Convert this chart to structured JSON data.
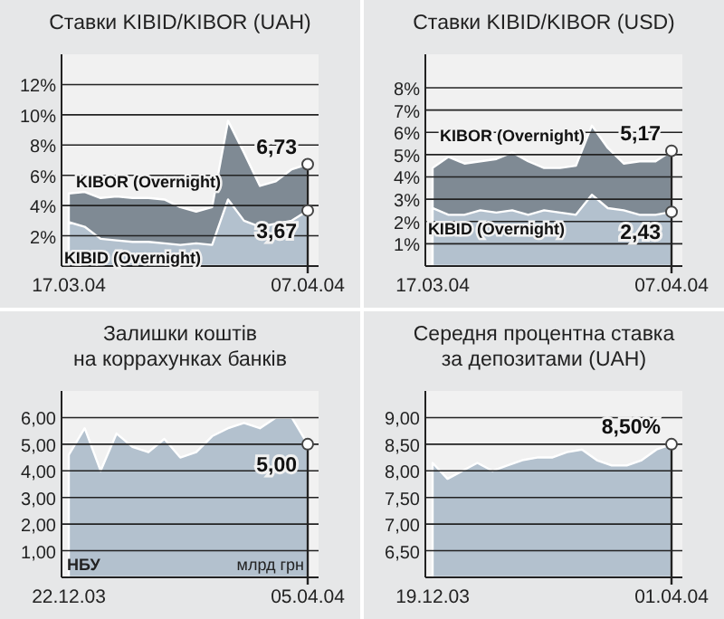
{
  "chart_data": [
    {
      "type": "area",
      "title": "Ставки KIBID/KIBOR (UAH)",
      "categories": [
        "17.03.04",
        null,
        null,
        null,
        null,
        null,
        null,
        null,
        null,
        null,
        null,
        null,
        null,
        null,
        null,
        "07.04.04"
      ],
      "ylim": [
        0,
        14
      ],
      "yticks": [
        {
          "value": 2,
          "label": "2%"
        },
        {
          "value": 4,
          "label": "4%"
        },
        {
          "value": 6,
          "label": "6%"
        },
        {
          "value": 8,
          "label": "8%"
        },
        {
          "value": 10,
          "label": "10%"
        },
        {
          "value": 12,
          "label": "12%"
        }
      ],
      "grid": "y",
      "series": [
        {
          "name": "KIBOR (Overnight)",
          "color": "#7f8a94",
          "values": [
            4.8,
            4.9,
            4.5,
            4.6,
            4.5,
            4.5,
            4.4,
            3.9,
            3.6,
            3.9,
            9.6,
            7.5,
            5.3,
            5.6,
            6.4,
            6.73
          ],
          "value_labels": [
            null,
            null,
            null,
            null,
            null,
            null,
            null,
            null,
            null,
            null,
            null,
            null,
            null,
            null,
            null,
            "6,73"
          ]
        },
        {
          "name": "KIBID (Overnight)",
          "color": "#b3c1ce",
          "values": [
            2.9,
            2.6,
            1.8,
            1.7,
            1.6,
            1.6,
            1.5,
            1.4,
            1.5,
            1.4,
            4.4,
            3.0,
            2.6,
            2.8,
            3.0,
            3.67
          ],
          "value_labels": [
            null,
            null,
            null,
            null,
            null,
            null,
            null,
            null,
            null,
            null,
            null,
            null,
            null,
            null,
            null,
            "3,67"
          ]
        }
      ]
    },
    {
      "type": "area",
      "title": "Ставки KIBID/KIBOR (USD)",
      "categories": [
        "17.03.04",
        null,
        null,
        null,
        null,
        null,
        null,
        null,
        null,
        null,
        null,
        null,
        null,
        null,
        null,
        "07.04.04"
      ],
      "ylim": [
        0,
        9.5
      ],
      "yticks": [
        {
          "value": 1,
          "label": "1%"
        },
        {
          "value": 2,
          "label": "2%"
        },
        {
          "value": 3,
          "label": "3%"
        },
        {
          "value": 4,
          "label": "4%"
        },
        {
          "value": 5,
          "label": "5%"
        },
        {
          "value": 6,
          "label": "6%"
        },
        {
          "value": 7,
          "label": "7%"
        },
        {
          "value": 8,
          "label": "8%"
        }
      ],
      "grid": "y",
      "series": [
        {
          "name": "KIBOR (Overnight)",
          "color": "#7f8a94",
          "values": [
            4.4,
            4.9,
            4.6,
            4.7,
            4.8,
            5.1,
            4.7,
            4.4,
            4.4,
            4.5,
            6.3,
            5.3,
            4.6,
            4.7,
            4.7,
            5.17
          ],
          "value_labels": [
            null,
            null,
            null,
            null,
            null,
            null,
            null,
            null,
            null,
            null,
            null,
            null,
            null,
            null,
            null,
            "5,17"
          ]
        },
        {
          "name": "KIBID (Overnight)",
          "color": "#b3c1ce",
          "values": [
            2.6,
            2.3,
            2.3,
            2.5,
            2.4,
            2.5,
            2.3,
            2.5,
            2.4,
            2.3,
            3.2,
            2.6,
            2.5,
            2.3,
            2.3,
            2.43
          ],
          "value_labels": [
            null,
            null,
            null,
            null,
            null,
            null,
            null,
            null,
            null,
            null,
            null,
            null,
            null,
            null,
            null,
            "2,43"
          ]
        }
      ]
    },
    {
      "type": "area",
      "title": "Залишки коштів\nна коррахунках банків",
      "categories": [
        "22.12.03",
        null,
        null,
        null,
        null,
        null,
        null,
        null,
        null,
        null,
        null,
        null,
        null,
        null,
        null,
        "05.04.04"
      ],
      "ylim": [
        0,
        7
      ],
      "yticks": [
        {
          "value": 1,
          "label": "1,00"
        },
        {
          "value": 2,
          "label": "2,00"
        },
        {
          "value": 3,
          "label": "3,00"
        },
        {
          "value": 4,
          "label": "4,00"
        },
        {
          "value": 5,
          "label": "5,00"
        },
        {
          "value": 6,
          "label": "6,00"
        }
      ],
      "grid": "y",
      "annotations": [
        "НБУ",
        "млрд грн"
      ],
      "series": [
        {
          "color": "#b3c1ce",
          "values": [
            4.6,
            5.6,
            4.0,
            5.4,
            4.9,
            4.7,
            5.2,
            4.5,
            4.7,
            5.3,
            5.6,
            5.8,
            5.6,
            6.0,
            6.0,
            5.0
          ],
          "value_labels": [
            null,
            null,
            null,
            null,
            null,
            null,
            null,
            null,
            null,
            null,
            null,
            null,
            null,
            null,
            null,
            "5,00"
          ]
        }
      ]
    },
    {
      "type": "area",
      "title": "Середня процентна ставка\nза депозитами (UAH)",
      "categories": [
        "19.12.03",
        null,
        null,
        null,
        null,
        null,
        null,
        null,
        null,
        null,
        null,
        null,
        null,
        null,
        null,
        null,
        "01.04.04"
      ],
      "ylim": [
        6,
        9.5
      ],
      "yticks": [
        {
          "value": 6.5,
          "label": "6,50"
        },
        {
          "value": 7,
          "label": "7,00"
        },
        {
          "value": 7.5,
          "label": "7,50"
        },
        {
          "value": 8,
          "label": "8,00"
        },
        {
          "value": 8.5,
          "label": "8,50"
        },
        {
          "value": 9,
          "label": "9,00"
        }
      ],
      "grid": "y",
      "series": [
        {
          "color": "#b3c1ce",
          "values": [
            8.15,
            7.85,
            8.0,
            8.15,
            8.0,
            8.1,
            8.2,
            8.25,
            8.25,
            8.35,
            8.4,
            8.2,
            8.1,
            8.1,
            8.2,
            8.4,
            8.5
          ],
          "value_labels": [
            null,
            null,
            null,
            null,
            null,
            null,
            null,
            null,
            null,
            null,
            null,
            null,
            null,
            null,
            null,
            null,
            "8,50%"
          ]
        }
      ]
    }
  ]
}
